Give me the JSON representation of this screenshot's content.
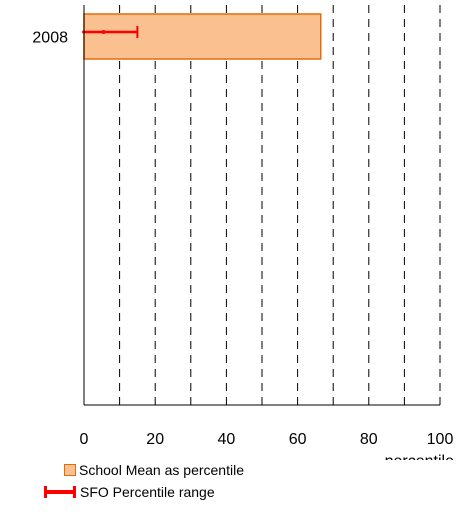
{
  "chart_data": {
    "type": "bar",
    "orientation": "horizontal",
    "categories": [
      "2008"
    ],
    "series": [
      {
        "name": "School Mean as percentile",
        "values": [
          66.5
        ],
        "color": "#fac090",
        "edge_color": "#e46c0a"
      }
    ],
    "error_range": {
      "name": "SFO Percentile range",
      "low": [
        -0.5
      ],
      "high": [
        15
      ],
      "marker": [
        5.5
      ],
      "color": "#ff0000"
    },
    "title": "",
    "xlabel": "percentile",
    "ylabel": "",
    "xlim": [
      0,
      100
    ],
    "xticks": [
      "0",
      "20",
      "40",
      "60",
      "80",
      "100"
    ],
    "grid": "vertical dashed every 10",
    "legend_position": "bottom-left"
  }
}
